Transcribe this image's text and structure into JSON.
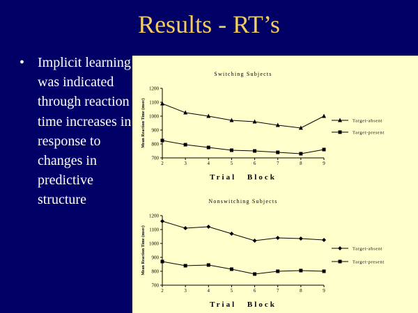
{
  "slide": {
    "title": "Results - RT’s",
    "bullet_symbol": "•",
    "bullet_text": "Implicit learning was indicated through reaction time increases in response to changes in predictive structure"
  },
  "colors": {
    "background": "#000066",
    "title": "#F2CC62",
    "chart_panel": "#FFFFCC",
    "series_line": "#000000"
  },
  "chart_data": [
    {
      "type": "line",
      "title": "Switching Subjects",
      "xlabel": "Trial Block",
      "ylabel": "Mean Reaction Time (msec)",
      "x": [
        2,
        3,
        4,
        5,
        6,
        7,
        8,
        9
      ],
      "xticks": [
        "2",
        "3",
        "4",
        "5",
        "6",
        "7",
        "8",
        "9"
      ],
      "ylim": [
        700,
        1200
      ],
      "yticks": [
        "700",
        "800",
        "900",
        "1000",
        "1100",
        "1200"
      ],
      "legend_position": "right",
      "series": [
        {
          "name": "Target-absent",
          "marker": "triangle",
          "values": [
            1090,
            1025,
            1000,
            970,
            960,
            935,
            915,
            1000
          ]
        },
        {
          "name": "Target-present",
          "marker": "square",
          "values": [
            825,
            795,
            775,
            755,
            750,
            740,
            730,
            760
          ]
        }
      ]
    },
    {
      "type": "line",
      "title": "Nonswitching Subjects",
      "xlabel": "Trial Block",
      "ylabel": "Mean Reaction Time (msec)",
      "x": [
        2,
        3,
        4,
        5,
        6,
        7,
        8,
        9
      ],
      "xticks": [
        "2",
        "3",
        "4",
        "5",
        "6",
        "7",
        "8",
        "9"
      ],
      "ylim": [
        700,
        1200
      ],
      "yticks": [
        "700",
        "800",
        "900",
        "1000",
        "1100",
        "1200"
      ],
      "legend_position": "right",
      "series": [
        {
          "name": "Target-absent",
          "marker": "diamond",
          "values": [
            1160,
            1110,
            1120,
            1070,
            1020,
            1040,
            1035,
            1025
          ]
        },
        {
          "name": "Target-present",
          "marker": "square",
          "values": [
            870,
            840,
            845,
            815,
            780,
            800,
            805,
            800
          ]
        }
      ]
    }
  ]
}
